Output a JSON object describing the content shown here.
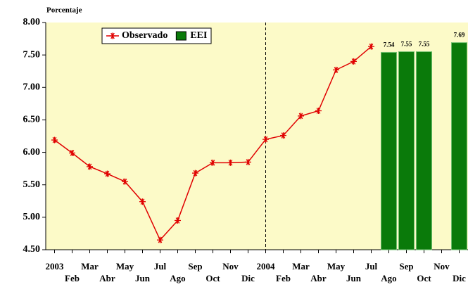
{
  "chart_data": {
    "type": "line_bar",
    "y_axis_label": "Porcentaje",
    "categories": [
      "2003",
      "Feb",
      "Mar",
      "Abr",
      "May",
      "Jun",
      "Jul",
      "Ago",
      "Sep",
      "Oct",
      "Nov",
      "Dic",
      "2004",
      "Feb",
      "Mar",
      "Abr",
      "May",
      "Jun",
      "Jul",
      "Ago",
      "Sep",
      "Oct",
      "Nov",
      "Dic"
    ],
    "series": [
      {
        "name": "Observado",
        "type": "line",
        "color": "#e00000",
        "values": [
          6.19,
          5.99,
          5.78,
          5.67,
          5.55,
          5.24,
          4.65,
          4.95,
          5.68,
          5.84,
          5.84,
          5.85,
          6.2,
          6.26,
          6.56,
          6.64,
          7.27,
          7.4,
          7.63,
          null,
          null,
          null,
          null,
          null
        ]
      },
      {
        "name": "EEI",
        "type": "bar",
        "color": "#0a7a0a",
        "values": [
          null,
          null,
          null,
          null,
          null,
          null,
          null,
          null,
          null,
          null,
          null,
          null,
          null,
          null,
          null,
          null,
          null,
          null,
          null,
          7.54,
          7.55,
          7.55,
          null,
          7.69
        ]
      }
    ],
    "ylim": [
      4.5,
      8.0
    ],
    "yticks": [
      {
        "value": 4.5,
        "label": "4.50"
      },
      {
        "value": 5.0,
        "label": "5.00"
      },
      {
        "value": 5.5,
        "label": "5.50"
      },
      {
        "value": 6.0,
        "label": "6.00"
      },
      {
        "value": 6.5,
        "label": "6.50"
      },
      {
        "value": 7.0,
        "label": "7.00"
      },
      {
        "value": 7.5,
        "label": "7.50"
      },
      {
        "value": 8.0,
        "label": "8.00"
      }
    ],
    "legend": "top-left"
  }
}
